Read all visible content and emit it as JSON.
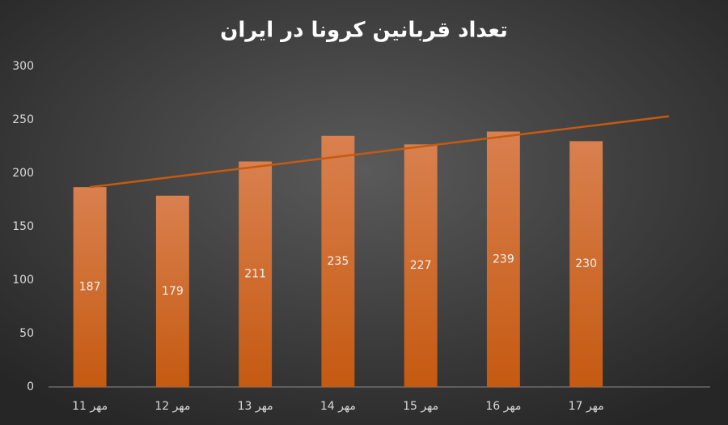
{
  "chart_data": {
    "type": "bar",
    "title": "تعداد قربانین کرونا در ایران",
    "categories": [
      "11 مهر",
      "12 مهر",
      "13 مهر",
      "14 مهر",
      "15 مهر",
      "16 مهر",
      "17 مهر",
      null
    ],
    "values": [
      187,
      179,
      211,
      235,
      227,
      239,
      230,
      null
    ],
    "color": "#c55a11",
    "trendline": {
      "color": "#c55a11",
      "values": [
        187,
        196.5,
        206,
        215.4,
        224.9,
        234.4,
        243.8,
        253.3
      ]
    },
    "ylim": [
      0,
      300
    ],
    "yticks": [
      0,
      50,
      100,
      150,
      200,
      250,
      300
    ],
    "grid": false
  }
}
